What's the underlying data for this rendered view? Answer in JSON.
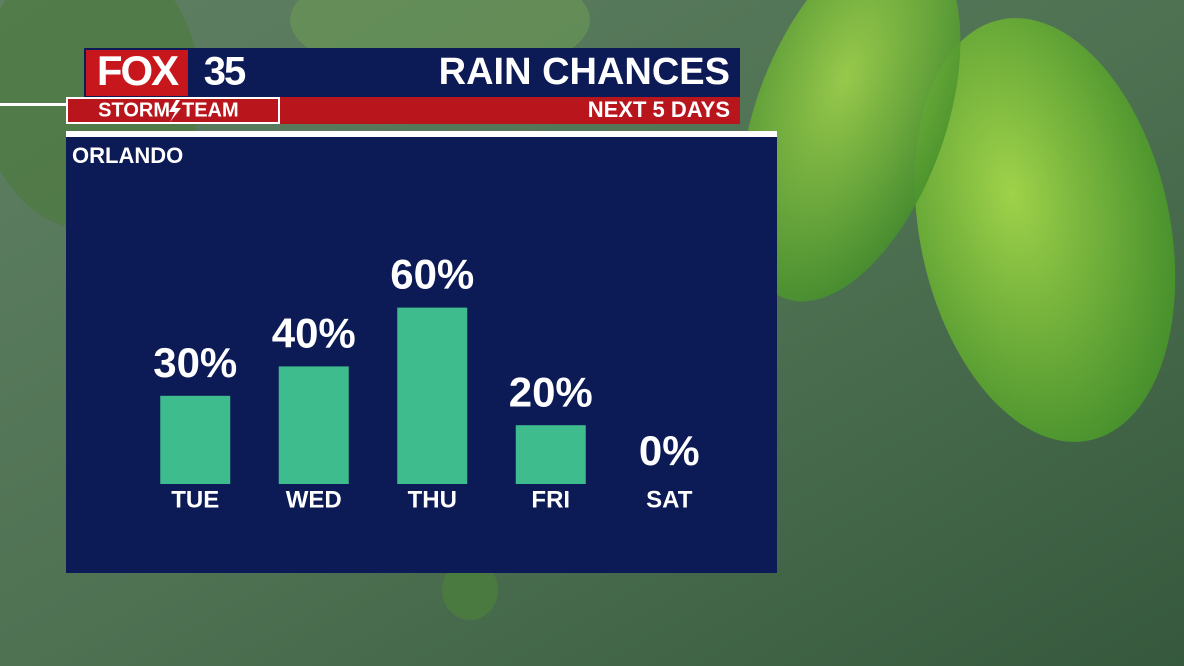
{
  "logo": {
    "network": "FOX",
    "channel": "35",
    "team_left": "STORM",
    "team_right": "TEAM"
  },
  "chart_data": {
    "type": "bar",
    "title": "RAIN CHANCES",
    "subtitle": "NEXT 5 DAYS",
    "location": "ORLANDO",
    "categories": [
      "TUE",
      "WED",
      "THU",
      "FRI",
      "SAT"
    ],
    "values": [
      30,
      40,
      60,
      20,
      0
    ],
    "value_labels": [
      "30%",
      "40%",
      "60%",
      "20%",
      "0%"
    ],
    "color": "#3fbc8e"
  }
}
